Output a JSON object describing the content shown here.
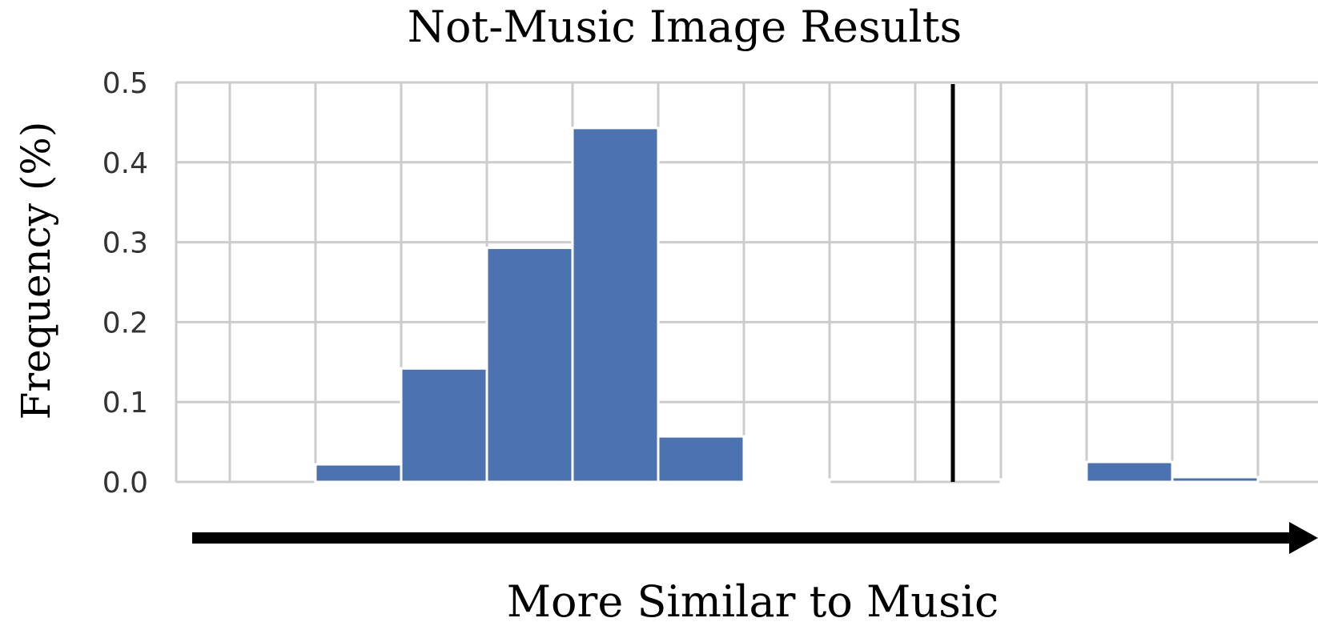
{
  "chart_data": {
    "type": "bar",
    "title": "Not-Music Image Results",
    "ylabel": "Frequency (%)",
    "xlabel": "More Similar to Music",
    "ylim": [
      0,
      0.5
    ],
    "yticks": [
      "0.0",
      "0.1",
      "0.2",
      "0.3",
      "0.4",
      "0.5"
    ],
    "ytick_values": [
      0,
      0.1,
      0.2,
      0.3,
      0.4,
      0.5
    ],
    "grid": true,
    "bin_count": 13,
    "values": [
      0,
      0.022,
      0.142,
      0.293,
      0.443,
      0.057,
      0.003,
      0,
      0,
      0.003,
      0.025,
      0.006,
      0
    ],
    "threshold_bin": 8
  },
  "colors": {
    "bar": "#4c72b0",
    "grid": "#cccccc",
    "threshold": "#000000",
    "arrow": "#000000"
  }
}
